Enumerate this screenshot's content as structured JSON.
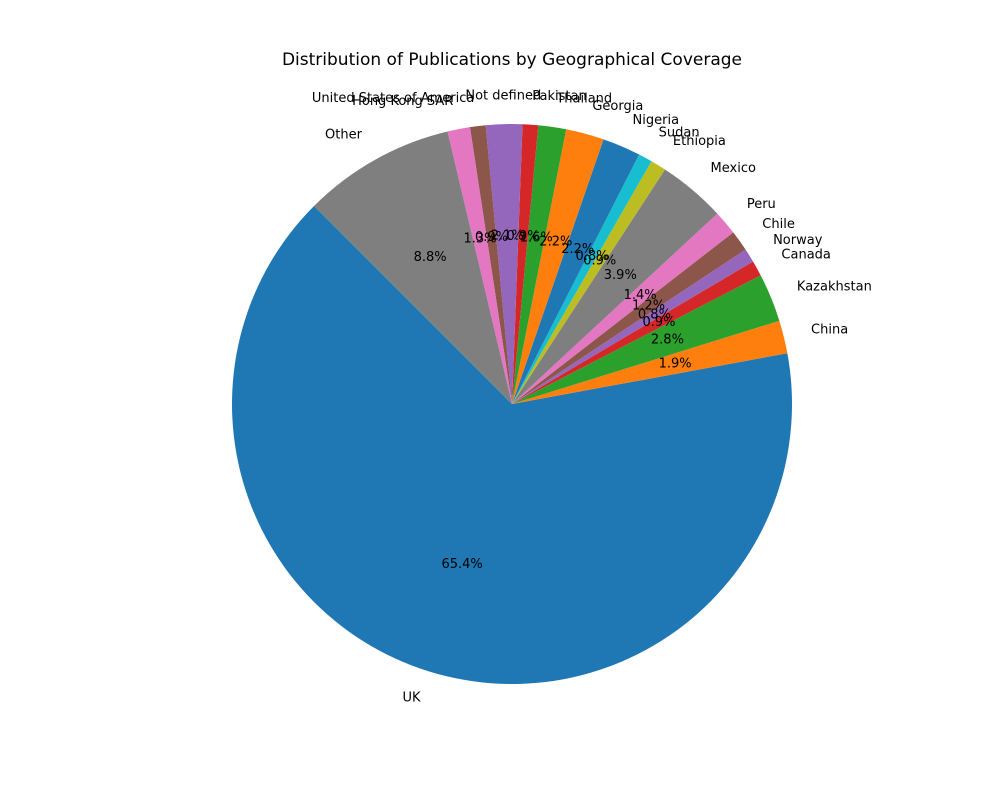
{
  "chart_data": {
    "type": "pie",
    "title": "Distribution of Publications by Geographical Coverage",
    "start_angle_deg": 135,
    "direction": "counterclockwise",
    "slices": [
      {
        "label": "UK",
        "value": 65.4,
        "pct_label": "65.4%",
        "color": "#1f77b4"
      },
      {
        "label": "China",
        "value": 1.9,
        "pct_label": "1.9%",
        "color": "#ff7f0e"
      },
      {
        "label": "Kazakhstan",
        "value": 2.8,
        "pct_label": "2.8%",
        "color": "#2ca02c"
      },
      {
        "label": "Canada",
        "value": 0.9,
        "pct_label": "0.9%",
        "color": "#d62728"
      },
      {
        "label": "Norway",
        "value": 0.8,
        "pct_label": "0.8%",
        "color": "#9467bd"
      },
      {
        "label": "Chile",
        "value": 1.2,
        "pct_label": "1.2%",
        "color": "#8c564b"
      },
      {
        "label": "Peru",
        "value": 1.4,
        "pct_label": "1.4%",
        "color": "#e377c2"
      },
      {
        "label": "Mexico",
        "value": 3.9,
        "pct_label": "3.9%",
        "color": "#7f7f7f"
      },
      {
        "label": "Ethiopia",
        "value": 0.9,
        "pct_label": "0.9%",
        "color": "#bcbd22"
      },
      {
        "label": "Sudan",
        "value": 0.8,
        "pct_label": "0.8%",
        "color": "#17becf"
      },
      {
        "label": "Nigeria",
        "value": 2.2,
        "pct_label": "2.2%",
        "color": "#1f77b4"
      },
      {
        "label": "Georgia",
        "value": 2.2,
        "pct_label": "2.2%",
        "color": "#ff7f0e"
      },
      {
        "label": "Thailand",
        "value": 1.6,
        "pct_label": "1.6%",
        "color": "#2ca02c"
      },
      {
        "label": "Pakistan",
        "value": 0.9,
        "pct_label": "0.9%",
        "color": "#d62728"
      },
      {
        "label": "Not defined",
        "value": 2.1,
        "pct_label": "2.1%",
        "color": "#9467bd"
      },
      {
        "label": "United States of America",
        "value": 0.9,
        "pct_label": "0.9%",
        "color": "#8c564b"
      },
      {
        "label": "Hong Kong SAR",
        "value": 1.3,
        "pct_label": "1.3%",
        "color": "#e377c2"
      },
      {
        "label": "Other",
        "value": 8.8,
        "pct_label": "8.8%",
        "color": "#7f7f7f"
      }
    ]
  }
}
